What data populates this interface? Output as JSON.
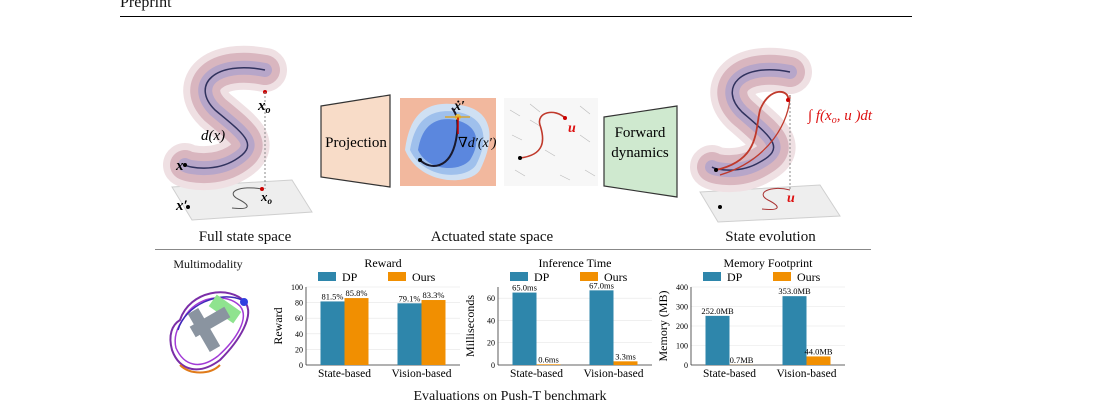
{
  "header": {
    "text": "Preprint"
  },
  "top_section": {
    "projection_label": "Projection",
    "forward_label_1": "Forward",
    "forward_label_2": "dynamics",
    "captions": {
      "full": "Full state space",
      "actuated": "Actuated state space",
      "evolution": "State evolution"
    },
    "math": {
      "x_o": "x",
      "x_o_sub": "o",
      "d_x": "d(x)",
      "x": "x",
      "x_prime": "x′",
      "x_o_prime": "x",
      "x_prime_dot": "ẋ′",
      "grad": "∇d′(x′)",
      "u": "u",
      "integral": "∫ f(x",
      "integral_end": ", u )dt"
    }
  },
  "bottom_section": {
    "multimodality_label": "Multimodality",
    "footer_caption": "Evaluations on Push-T benchmark",
    "legend": {
      "dp": "DP",
      "ours": "Ours"
    },
    "colors": {
      "dp": "#2e86ab",
      "ours": "#f18f01"
    }
  },
  "chart_data": [
    {
      "type": "bar",
      "title": "Reward",
      "ylabel": "Reward",
      "categories": [
        "State-based",
        "Vision-based"
      ],
      "ylim": [
        0,
        100
      ],
      "yticks": [
        "0",
        "20",
        "40",
        "60",
        "80",
        "100"
      ],
      "series": [
        {
          "name": "DP",
          "values": [
            81.5,
            79.1
          ],
          "labels": [
            "81.5%",
            "79.1%"
          ]
        },
        {
          "name": "Ours",
          "values": [
            85.8,
            83.3
          ],
          "labels": [
            "85.8%",
            "83.3%"
          ]
        }
      ]
    },
    {
      "type": "bar",
      "title": "Inference Time",
      "ylabel": "Milliseconds",
      "categories": [
        "State-based",
        "Vision-based"
      ],
      "ylim": [
        0,
        70
      ],
      "yticks": [
        "0",
        "20",
        "40",
        "60"
      ],
      "series": [
        {
          "name": "DP",
          "values": [
            65.0,
            67.0
          ],
          "labels": [
            "65.0ms",
            "67.0ms"
          ]
        },
        {
          "name": "Ours",
          "values": [
            0.6,
            3.3
          ],
          "labels": [
            "0.6ms",
            "3.3ms"
          ]
        }
      ]
    },
    {
      "type": "bar",
      "title": "Memory Footprint",
      "ylabel": "Memory (MB)",
      "categories": [
        "State-based",
        "Vision-based"
      ],
      "ylim": [
        0,
        400
      ],
      "yticks": [
        "0",
        "100",
        "200",
        "300",
        "400"
      ],
      "series": [
        {
          "name": "DP",
          "values": [
            252.0,
            353.0
          ],
          "labels": [
            "252.0MB",
            "353.0MB"
          ]
        },
        {
          "name": "Ours",
          "values": [
            0.7,
            44.0
          ],
          "labels": [
            "0.7MB",
            "44.0MB"
          ]
        }
      ]
    }
  ]
}
